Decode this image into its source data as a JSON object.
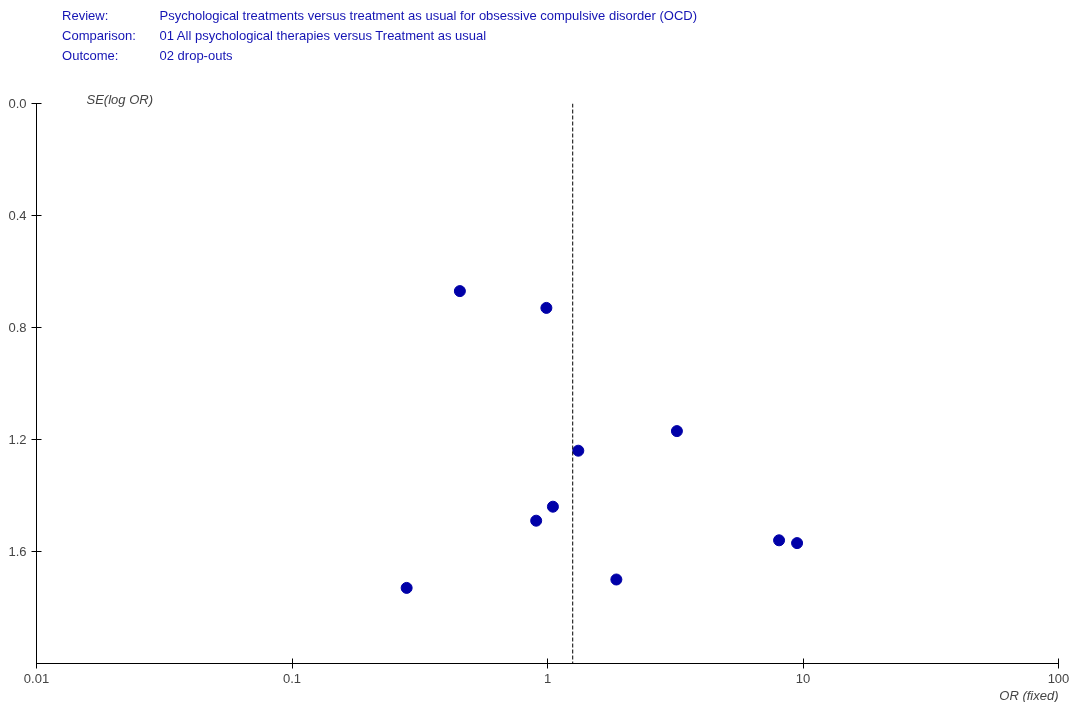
{
  "chart_data": {
    "type": "scatter",
    "annotations": [
      "Review: Psychological treatments versus treatment as usual  for obsessive compulsive disorder (OCD)",
      "Comparison: 01 All psychological therapies versus Treatment as usual",
      "Outcome: 02 drop-outs"
    ],
    "xlabel": "OR (fixed)",
    "ylabel": "SE(log OR)",
    "x": [
      0.454,
      0.99,
      3.21,
      1.32,
      1.05,
      0.903,
      8.06,
      9.48,
      1.86,
      0.281
    ],
    "series": [
      {
        "color": "#0000a8",
        "values": [
          0.67,
          0.73,
          1.17,
          1.24,
          1.44,
          1.49,
          1.56,
          1.57,
          1.7,
          1.73
        ]
      }
    ],
    "marker": "circle",
    "log": "x",
    "grid": false,
    "xlim": [
      0.01,
      100
    ],
    "xticks": [
      0.01,
      0.1,
      1,
      10,
      100
    ],
    "ylim": [
      2.0,
      0.0
    ],
    "yticks": [
      {
        "value": 0.0,
        "label": "0.0"
      },
      0.4,
      0.8,
      1.2,
      1.6
    ],
    "ref_lines": [
      {
        "axis": "x",
        "value": 1.255,
        "label": null,
        "line_style": "dashed",
        "color": "#000000"
      }
    ]
  }
}
